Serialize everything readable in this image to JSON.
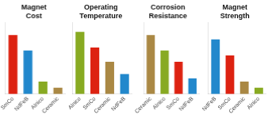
{
  "chart_data": [
    {
      "type": "bar",
      "title": "Magnet\nCost",
      "categories": [
        "SmCo",
        "NdFeB",
        "Alnico",
        "Ceramic"
      ],
      "values": [
        95,
        70,
        20,
        10
      ],
      "colors": [
        "#dd2211",
        "#2288cc",
        "#88aa22",
        "#aa8844"
      ],
      "ylim": [
        0,
        115
      ],
      "grid": false,
      "tick_labels": "x"
    },
    {
      "type": "bar",
      "title": "Operating\nTemperature",
      "categories": [
        "Alnico",
        "SmCo",
        "Ceramic",
        "NdFeB"
      ],
      "values": [
        100,
        75,
        52,
        32
      ],
      "colors": [
        "#88aa22",
        "#dd2211",
        "#aa8844",
        "#2288cc"
      ],
      "ylim": [
        0,
        115
      ],
      "grid": false,
      "tick_labels": "x"
    },
    {
      "type": "bar",
      "title": "Corrosion\nResistance",
      "categories": [
        "Ceramic",
        "Alnico",
        "SmCo",
        "NdFeB"
      ],
      "values": [
        95,
        70,
        52,
        25
      ],
      "colors": [
        "#aa8844",
        "#88aa22",
        "#dd2211",
        "#2288cc"
      ],
      "ylim": [
        0,
        115
      ],
      "grid": false,
      "tick_labels": "x"
    },
    {
      "type": "bar",
      "title": "Magnet\nStrength",
      "categories": [
        "NdFeB",
        "SmCo",
        "Ceramic",
        "Alnico"
      ],
      "values": [
        88,
        62,
        20,
        10
      ],
      "colors": [
        "#2288cc",
        "#dd2211",
        "#aa8844",
        "#88aa22"
      ],
      "ylim": [
        0,
        115
      ],
      "grid": false,
      "tick_labels": "x"
    }
  ]
}
